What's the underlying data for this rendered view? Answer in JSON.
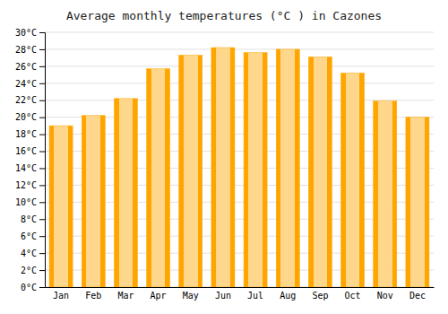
{
  "chart_data": {
    "type": "bar",
    "title": "Average monthly temperatures (°C ) in Cazones",
    "categories": [
      "Jan",
      "Feb",
      "Mar",
      "Apr",
      "May",
      "Jun",
      "Jul",
      "Aug",
      "Sep",
      "Oct",
      "Nov",
      "Dec"
    ],
    "values": [
      19.0,
      20.2,
      22.2,
      25.7,
      27.3,
      28.2,
      27.6,
      28.0,
      27.1,
      25.2,
      21.9,
      20.0
    ],
    "color": "#FFA500",
    "ylim": [
      0,
      30
    ],
    "yticks": [
      {
        "value": 0,
        "label": "0°C"
      },
      {
        "value": 2,
        "label": "2°C"
      },
      {
        "value": 4,
        "label": "4°C"
      },
      {
        "value": 6,
        "label": "6°C"
      },
      {
        "value": 8,
        "label": "8°C"
      },
      {
        "value": 10,
        "label": "10°C"
      },
      {
        "value": 12,
        "label": "12°C"
      },
      {
        "value": 14,
        "label": "14°C"
      },
      {
        "value": 16,
        "label": "16°C"
      },
      {
        "value": 18,
        "label": "18°C"
      },
      {
        "value": 20,
        "label": "20°C"
      },
      {
        "value": 22,
        "label": "22°C"
      },
      {
        "value": 24,
        "label": "24°C"
      },
      {
        "value": 26,
        "label": "26°C"
      },
      {
        "value": 28,
        "label": "28°C"
      },
      {
        "value": 30,
        "label": "30°C"
      }
    ],
    "grid": true
  }
}
